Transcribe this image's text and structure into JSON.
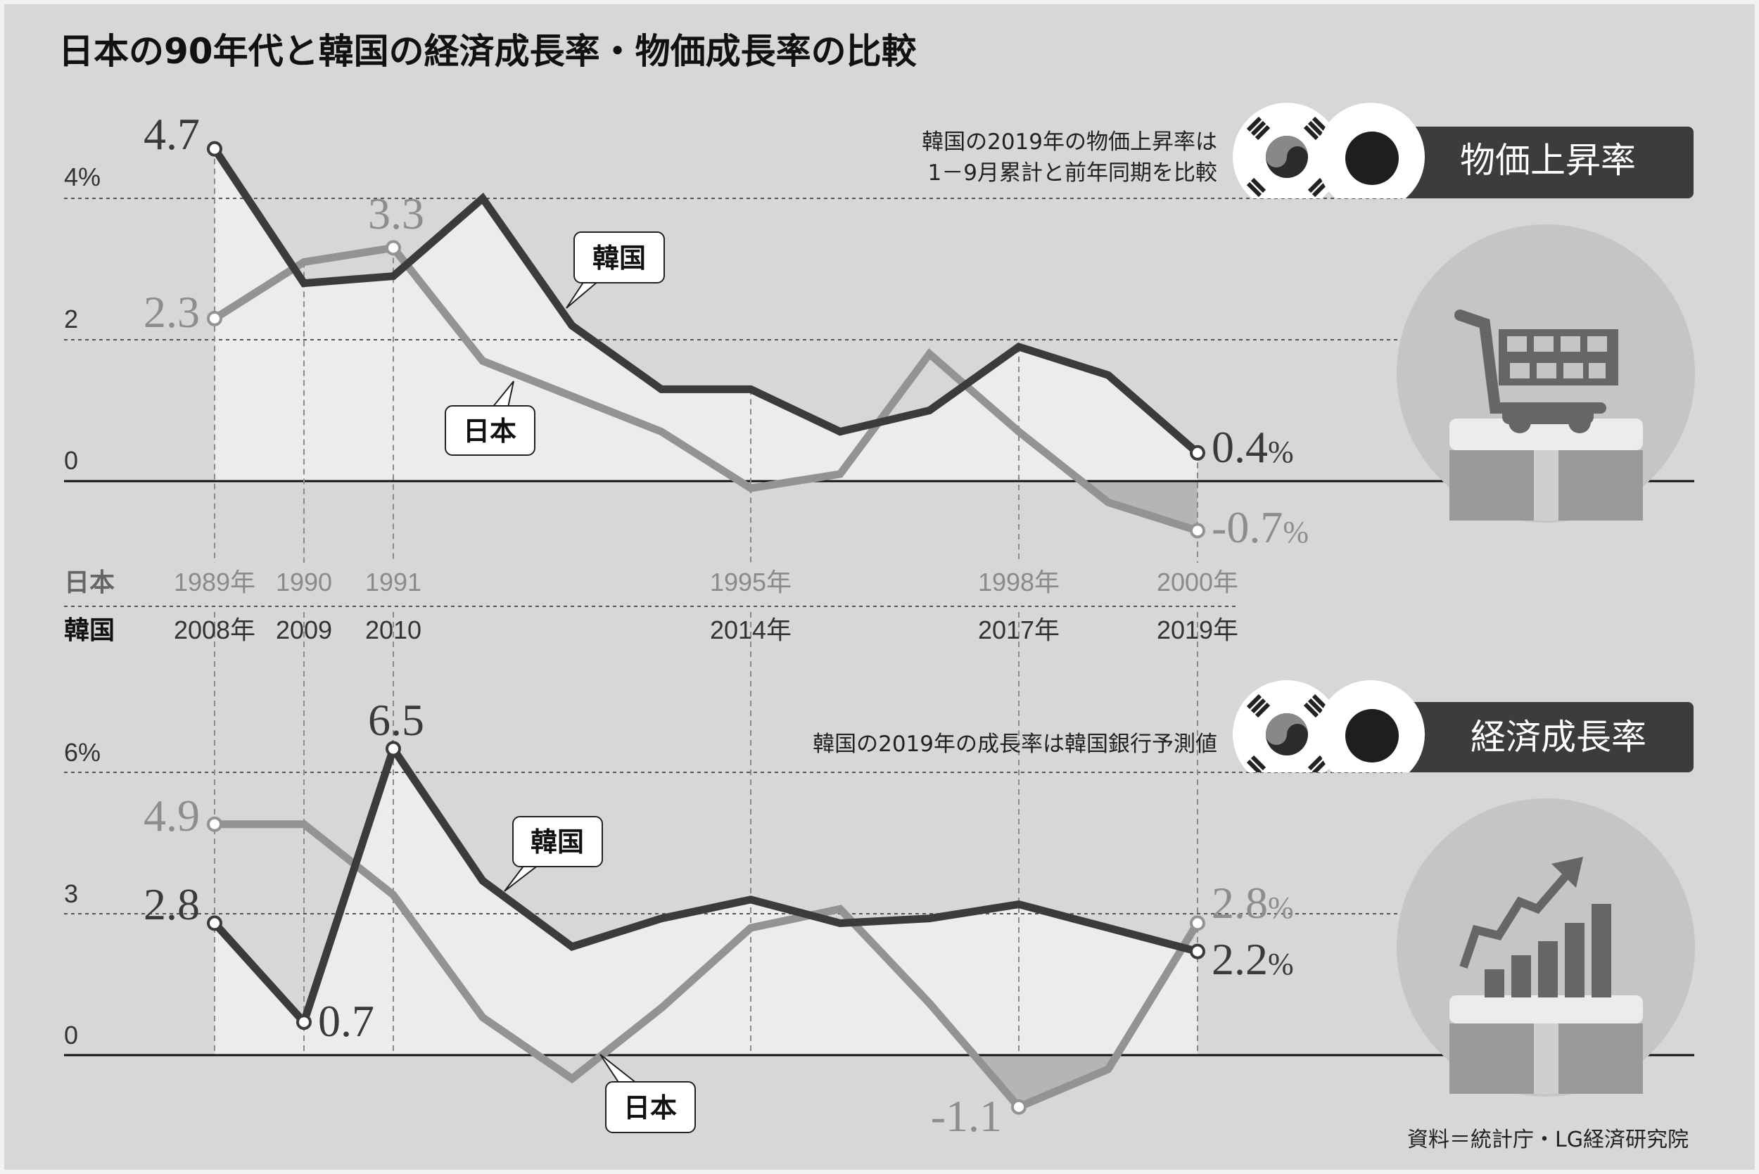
{
  "title": "日本の90年代と韓国の経済成長率・物価成長率の比較",
  "colors": {
    "korea": "#3b3b3b",
    "japan": "#939393",
    "background": "#d6d7d8",
    "fill_light": "#ececec",
    "fill_dark": "#b4b5b7",
    "banner": "#3c3c3c"
  },
  "row_labels": {
    "japan": "日本",
    "korea": "韓国"
  },
  "x_ticks": {
    "japan": [
      "1989年",
      "1990",
      "1991",
      "1995年",
      "1998年",
      "2000年"
    ],
    "korea": [
      "2008年",
      "2009",
      "2010",
      "2014年",
      "2017年",
      "2019年"
    ]
  },
  "callouts": {
    "korea": "韓国",
    "japan": "日本"
  },
  "source": "資料＝統計庁・LG経済研究院",
  "chart_data": [
    {
      "type": "line",
      "title": "物価上昇率",
      "note": [
        "韓国の2019年の物価上昇率は",
        "1－9月累計と前年同期を比較"
      ],
      "x_japan": [
        1989,
        1990,
        1991,
        1992,
        1993,
        1994,
        1995,
        1996,
        1997,
        1998,
        1999,
        2000
      ],
      "x_korea": [
        2008,
        2009,
        2010,
        2011,
        2012,
        2013,
        2014,
        2015,
        2016,
        2017,
        2018,
        2019
      ],
      "series": [
        {
          "name": "韓国",
          "values": [
            4.7,
            2.8,
            2.9,
            4.0,
            2.2,
            1.3,
            1.3,
            0.7,
            1.0,
            1.9,
            1.5,
            0.4
          ]
        },
        {
          "name": "日本",
          "values": [
            2.3,
            3.1,
            3.3,
            1.7,
            1.2,
            0.7,
            -0.1,
            0.1,
            1.8,
            0.7,
            -0.3,
            -0.7
          ]
        }
      ],
      "y_ticks": [
        "4%",
        "2",
        "0"
      ],
      "y_tick_values": [
        4,
        2,
        0
      ],
      "labels": {
        "k_first": "4.7",
        "j_first": "2.3",
        "j_peak": "3.3",
        "k_last": "0.4",
        "j_last": "-0.7",
        "pct": "%"
      },
      "ylim": [
        -1,
        5
      ]
    },
    {
      "type": "line",
      "title": "経済成長率",
      "note": [
        "韓国の2019年の成長率は韓国銀行予測値"
      ],
      "x_japan": [
        1989,
        1990,
        1991,
        1992,
        1993,
        1994,
        1995,
        1996,
        1997,
        1998,
        1999,
        2000
      ],
      "x_korea": [
        2008,
        2009,
        2010,
        2011,
        2012,
        2013,
        2014,
        2015,
        2016,
        2017,
        2018,
        2019
      ],
      "series": [
        {
          "name": "韓国",
          "values": [
            2.8,
            0.7,
            6.5,
            3.7,
            2.3,
            2.9,
            3.3,
            2.8,
            2.9,
            3.2,
            2.7,
            2.2
          ]
        },
        {
          "name": "日本",
          "values": [
            4.9,
            4.9,
            3.4,
            0.8,
            -0.5,
            1.0,
            2.7,
            3.1,
            1.1,
            -1.1,
            -0.3,
            2.8
          ]
        }
      ],
      "y_ticks": [
        "6%",
        "3",
        "0"
      ],
      "y_tick_values": [
        6,
        3,
        0
      ],
      "labels": {
        "k_first": "2.8",
        "k_low": "0.7",
        "k_peak": "6.5",
        "j_first": "4.9",
        "j_low": "-1.1",
        "k_last": "2.2",
        "j_last": "2.8",
        "pct": "%"
      },
      "ylim": [
        -2,
        7
      ]
    }
  ]
}
